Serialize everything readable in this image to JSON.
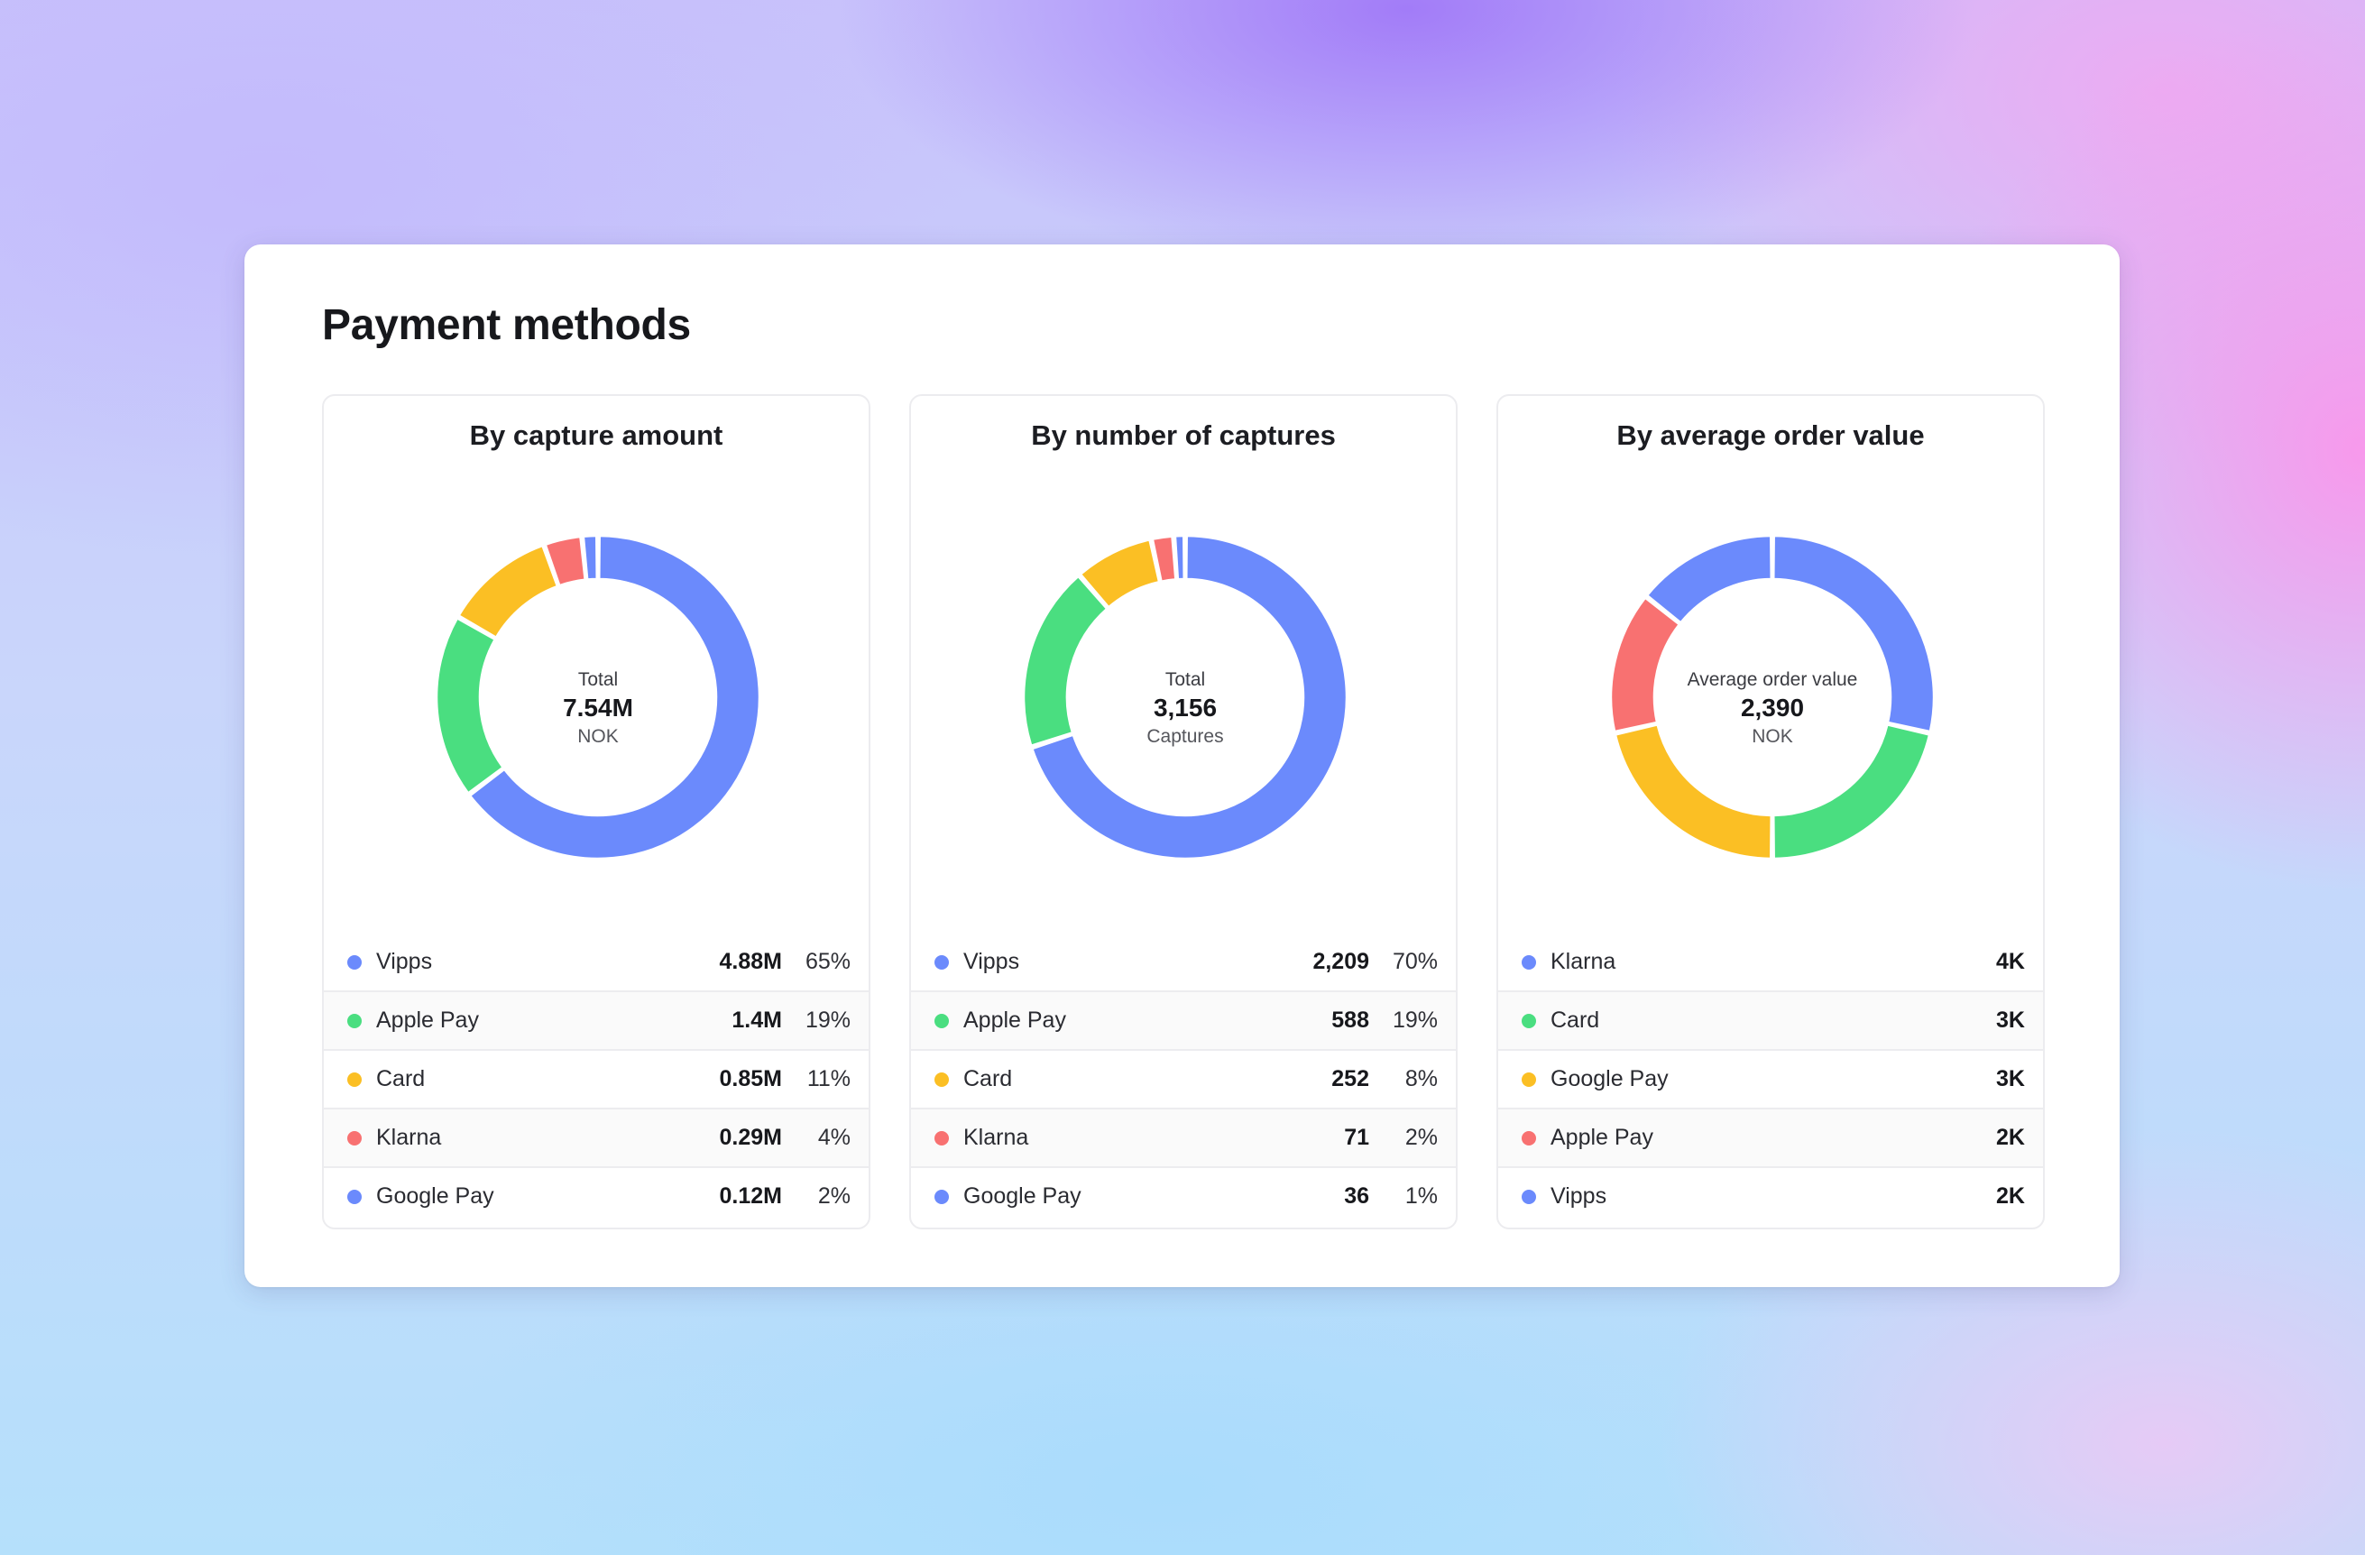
{
  "page": {
    "title": "Payment methods"
  },
  "colors": {
    "blue": "#6b8afc",
    "green": "#4ade80",
    "yellow": "#fbbf24",
    "red": "#f87171",
    "blue2": "#6b8afc",
    "gap": "#ffffff"
  },
  "chart_data": [
    {
      "type": "pie",
      "title": "By capture amount",
      "center": {
        "label": "Total",
        "value": "7.54M",
        "unit": "NOK"
      },
      "slices": [
        {
          "name": "Vipps",
          "value": 4.88,
          "display": "4.88M",
          "percent": "65%",
          "color": "#6b8afc"
        },
        {
          "name": "Apple Pay",
          "value": 1.4,
          "display": "1.4M",
          "percent": "19%",
          "color": "#4ade80"
        },
        {
          "name": "Card",
          "value": 0.85,
          "display": "0.85M",
          "percent": "11%",
          "color": "#fbbf24"
        },
        {
          "name": "Klarna",
          "value": 0.29,
          "display": "0.29M",
          "percent": "4%",
          "color": "#f87171"
        },
        {
          "name": "Google Pay",
          "value": 0.12,
          "display": "0.12M",
          "percent": "2%",
          "color": "#6b8afc"
        }
      ]
    },
    {
      "type": "pie",
      "title": "By number of captures",
      "center": {
        "label": "Total",
        "value": "3,156",
        "unit": "Captures"
      },
      "slices": [
        {
          "name": "Vipps",
          "value": 2209,
          "display": "2,209",
          "percent": "70%",
          "color": "#6b8afc"
        },
        {
          "name": "Apple Pay",
          "value": 588,
          "display": "588",
          "percent": "19%",
          "color": "#4ade80"
        },
        {
          "name": "Card",
          "value": 252,
          "display": "252",
          "percent": "8%",
          "color": "#fbbf24"
        },
        {
          "name": "Klarna",
          "value": 71,
          "display": "71",
          "percent": "2%",
          "color": "#f87171"
        },
        {
          "name": "Google Pay",
          "value": 36,
          "display": "36",
          "percent": "1%",
          "color": "#6b8afc"
        }
      ]
    },
    {
      "type": "pie",
      "title": "By average order value",
      "center": {
        "label": "Average order value",
        "value": "2,390",
        "unit": "NOK"
      },
      "slices": [
        {
          "name": "Klarna",
          "value": 4,
          "display": "4K",
          "color": "#6b8afc"
        },
        {
          "name": "Card",
          "value": 3,
          "display": "3K",
          "color": "#4ade80"
        },
        {
          "name": "Google Pay",
          "value": 3,
          "display": "3K",
          "color": "#fbbf24"
        },
        {
          "name": "Apple Pay",
          "value": 2,
          "display": "2K",
          "color": "#f87171"
        },
        {
          "name": "Vipps",
          "value": 2,
          "display": "2K",
          "color": "#6b8afc"
        }
      ]
    }
  ]
}
